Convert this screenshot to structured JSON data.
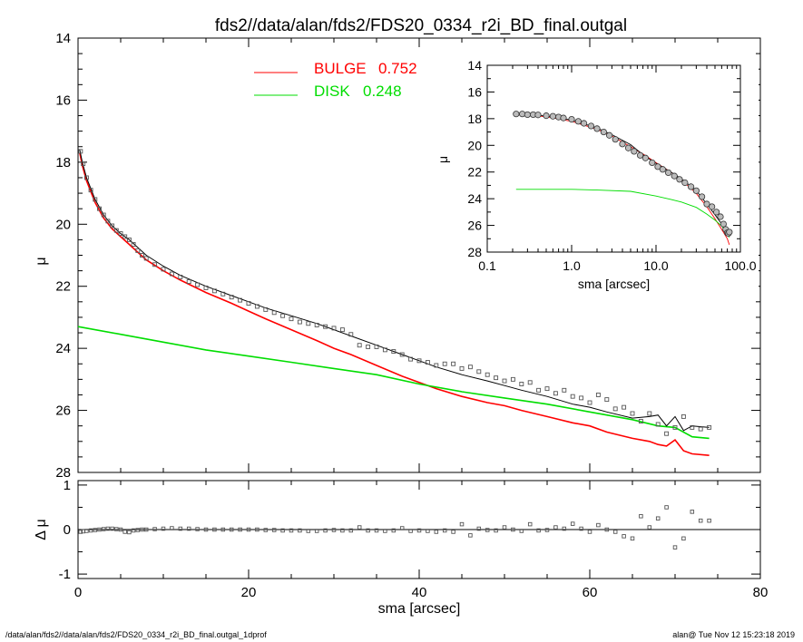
{
  "title": "fds2//data/alan/fds2/FDS20_0334_r2i_BD_final.outgal",
  "footer_left": "/data/alan/fds2//data/alan/fds2/FDS20_0334_r2i_BD_final.outgal_1dprof",
  "footer_right": "alan@  Tue Nov 12 15:23:18 2019",
  "legend": {
    "bulge": {
      "label": "BULGE",
      "value": "0.752",
      "color": "#ff0000"
    },
    "disk": {
      "label": "DISK",
      "value": "0.248",
      "color": "#00dd00"
    }
  },
  "chart_data": [
    {
      "id": "main",
      "type": "line",
      "xlabel": "sma [arcsec]",
      "ylabel": "μ",
      "xlim": [
        0,
        80
      ],
      "ylim": [
        28,
        14
      ],
      "x_ticks": [
        "0",
        "20",
        "40",
        "60",
        "80"
      ],
      "y_ticks": [
        "14",
        "16",
        "18",
        "20",
        "22",
        "24",
        "26",
        "28"
      ],
      "series": [
        {
          "name": "BULGE",
          "color": "#ff0000",
          "x": [
            0.2,
            0.5,
            1,
            2,
            3,
            4,
            5,
            6,
            7,
            8,
            10,
            12,
            15,
            18,
            20,
            22,
            25,
            28,
            30,
            32,
            35,
            38,
            40,
            42,
            45,
            48,
            50,
            52,
            55,
            58,
            60,
            62,
            65,
            67,
            68,
            69,
            70,
            71,
            72,
            74
          ],
          "y": [
            17.7,
            18.1,
            18.6,
            19.3,
            19.8,
            20.15,
            20.4,
            20.65,
            20.9,
            21.15,
            21.5,
            21.8,
            22.2,
            22.55,
            22.8,
            23.05,
            23.4,
            23.75,
            24.0,
            24.2,
            24.55,
            24.9,
            25.1,
            25.3,
            25.55,
            25.75,
            25.85,
            26.0,
            26.2,
            26.4,
            26.5,
            26.7,
            26.9,
            27.0,
            27.1,
            27.15,
            26.95,
            27.3,
            27.4,
            27.45
          ]
        },
        {
          "name": "DISK",
          "color": "#00dd00",
          "x": [
            0,
            5,
            10,
            15,
            20,
            25,
            30,
            35,
            40,
            45,
            50,
            55,
            60,
            65,
            68,
            70,
            72,
            74
          ],
          "y": [
            23.3,
            23.55,
            23.8,
            24.05,
            24.25,
            24.45,
            24.65,
            24.85,
            25.15,
            25.4,
            25.6,
            25.8,
            26.05,
            26.3,
            26.5,
            26.55,
            26.85,
            26.9
          ]
        },
        {
          "name": "total",
          "color": "#000000",
          "x": [
            0.2,
            0.5,
            1,
            2,
            3,
            4,
            5,
            6,
            7,
            8,
            10,
            12,
            15,
            18,
            20,
            22,
            25,
            28,
            30,
            32,
            35,
            38,
            40,
            42,
            45,
            48,
            50,
            52,
            55,
            58,
            60,
            62,
            65,
            67,
            68,
            69,
            70,
            71,
            72,
            74
          ],
          "y": [
            17.6,
            18.0,
            18.5,
            19.2,
            19.7,
            20.05,
            20.3,
            20.5,
            20.75,
            21.0,
            21.35,
            21.65,
            22.0,
            22.3,
            22.5,
            22.7,
            22.95,
            23.2,
            23.4,
            23.6,
            23.9,
            24.2,
            24.4,
            24.6,
            24.85,
            25.05,
            25.2,
            25.35,
            25.55,
            25.8,
            25.9,
            26.05,
            26.25,
            26.2,
            26.15,
            26.5,
            26.2,
            26.65,
            26.5,
            26.55
          ]
        },
        {
          "name": "data",
          "type": "scatter",
          "color": "#555555",
          "x": [
            0.3,
            0.6,
            1,
            1.5,
            2,
            2.5,
            3,
            3.5,
            4,
            4.5,
            5,
            5.5,
            6,
            6.5,
            7,
            7.5,
            8,
            9,
            10,
            11,
            12,
            13,
            14,
            15,
            16,
            17,
            18,
            19,
            20,
            21,
            22,
            23,
            24,
            25,
            26,
            27,
            28,
            29,
            30,
            31,
            32,
            33,
            34,
            35,
            36,
            37,
            38,
            39,
            40,
            41,
            42,
            43,
            44,
            45,
            46,
            47,
            48,
            49,
            50,
            51,
            52,
            53,
            54,
            55,
            56,
            57,
            58,
            59,
            60,
            61,
            62,
            63,
            64,
            65,
            66,
            67,
            68,
            69,
            70,
            71,
            72,
            73,
            74
          ],
          "y": [
            17.65,
            18.05,
            18.5,
            18.9,
            19.2,
            19.5,
            19.7,
            19.9,
            20.05,
            20.2,
            20.3,
            20.4,
            20.5,
            20.65,
            20.85,
            21.0,
            21.1,
            21.3,
            21.45,
            21.6,
            21.7,
            21.85,
            21.95,
            22.05,
            22.15,
            22.25,
            22.35,
            22.45,
            22.55,
            22.65,
            22.75,
            22.85,
            22.95,
            23.05,
            23.15,
            23.2,
            23.25,
            23.3,
            23.35,
            23.4,
            23.55,
            23.9,
            23.95,
            23.95,
            24.05,
            24.1,
            24.2,
            24.35,
            24.4,
            24.45,
            24.55,
            24.5,
            24.5,
            24.65,
            24.6,
            24.75,
            24.85,
            24.95,
            25.05,
            25.0,
            25.15,
            25.1,
            25.35,
            25.3,
            25.45,
            25.35,
            25.55,
            25.6,
            25.75,
            25.5,
            25.65,
            25.95,
            25.9,
            26.1,
            26.35,
            26.1,
            26.45,
            26.75,
            26.55,
            26.2,
            26.55,
            26.6,
            26.55
          ]
        }
      ]
    },
    {
      "id": "residual",
      "type": "scatter",
      "xlabel": "sma [arcsec]",
      "ylabel": "Δ μ",
      "xlim": [
        0,
        80
      ],
      "ylim": [
        -1.1,
        1.1
      ],
      "y_ticks": [
        "-1",
        "0",
        "1"
      ],
      "series": [
        {
          "name": "residual",
          "x": [
            0.3,
            0.6,
            1,
            1.5,
            2,
            2.5,
            3,
            3.5,
            4,
            4.5,
            5,
            5.5,
            6,
            6.5,
            7,
            7.5,
            8,
            9,
            10,
            11,
            12,
            13,
            14,
            15,
            16,
            17,
            18,
            19,
            20,
            21,
            22,
            23,
            24,
            25,
            26,
            27,
            28,
            29,
            30,
            31,
            32,
            33,
            34,
            35,
            36,
            37,
            38,
            39,
            40,
            41,
            42,
            43,
            44,
            45,
            46,
            47,
            48,
            49,
            50,
            51,
            52,
            53,
            54,
            55,
            56,
            57,
            58,
            59,
            60,
            61,
            62,
            63,
            64,
            65,
            66,
            67,
            68,
            69,
            70,
            71,
            72,
            73,
            74
          ],
          "y": [
            -0.05,
            -0.04,
            -0.03,
            -0.02,
            -0.01,
            0.0,
            0.01,
            0.02,
            0.02,
            0.01,
            0.0,
            -0.05,
            -0.06,
            -0.02,
            -0.01,
            0.0,
            0.0,
            0.01,
            0.02,
            0.03,
            0.02,
            0.02,
            0.01,
            0.0,
            0.0,
            0.0,
            0.0,
            0.0,
            0.0,
            0.0,
            -0.01,
            -0.01,
            -0.02,
            -0.02,
            -0.02,
            -0.03,
            -0.03,
            -0.02,
            -0.01,
            -0.02,
            -0.02,
            0.05,
            -0.02,
            -0.02,
            -0.03,
            -0.02,
            0.03,
            -0.03,
            -0.02,
            -0.03,
            -0.05,
            -0.02,
            -0.05,
            0.12,
            -0.13,
            0.02,
            -0.01,
            -0.02,
            0.05,
            0.0,
            -0.03,
            0.12,
            -0.02,
            -0.01,
            0.05,
            0.02,
            0.13,
            0.02,
            -0.05,
            0.1,
            0.0,
            -0.05,
            -0.15,
            -0.2,
            0.3,
            0.05,
            0.25,
            0.5,
            -0.4,
            -0.2,
            0.4,
            0.2,
            0.2
          ]
        }
      ]
    },
    {
      "id": "inset",
      "type": "line",
      "xlabel": "sma [arcsec]",
      "ylabel": "μ",
      "xscale": "log",
      "xlim": [
        0.1,
        100
      ],
      "ylim": [
        28,
        14
      ],
      "x_ticks": [
        "0.1",
        "1.0",
        "10.0",
        "100.0"
      ],
      "y_ticks": [
        "14",
        "16",
        "18",
        "20",
        "22",
        "24",
        "26",
        "28"
      ],
      "series": [
        {
          "name": "BULGE",
          "color": "#ff0000",
          "x": [
            0.22,
            0.3,
            0.5,
            1,
            2,
            3,
            5,
            7,
            10,
            15,
            20,
            30,
            40,
            50,
            60,
            70,
            74
          ],
          "y": [
            17.7,
            17.75,
            17.85,
            18.2,
            18.8,
            19.3,
            20.1,
            20.65,
            21.3,
            22.0,
            22.6,
            23.6,
            24.6,
            25.5,
            26.3,
            27.0,
            27.45
          ]
        },
        {
          "name": "DISK",
          "color": "#00dd00",
          "x": [
            0.22,
            0.5,
            1,
            2,
            5,
            10,
            15,
            20,
            30,
            40,
            50,
            60,
            74
          ],
          "y": [
            23.3,
            23.3,
            23.3,
            23.35,
            23.45,
            23.8,
            24.05,
            24.25,
            24.65,
            25.15,
            25.6,
            26.05,
            26.9
          ]
        },
        {
          "name": "total",
          "color": "#000000",
          "x": [
            0.22,
            0.3,
            0.5,
            1,
            2,
            3,
            5,
            7,
            10,
            15,
            20,
            30,
            40,
            50,
            60,
            70,
            74
          ],
          "y": [
            17.65,
            17.7,
            17.8,
            18.1,
            18.7,
            19.2,
            19.95,
            20.7,
            21.35,
            22.0,
            22.5,
            23.4,
            24.4,
            25.2,
            25.9,
            26.2,
            26.55
          ]
        },
        {
          "name": "data",
          "type": "scatter",
          "x": [
            0.22,
            0.26,
            0.3,
            0.35,
            0.4,
            0.5,
            0.6,
            0.7,
            0.8,
            1.0,
            1.2,
            1.4,
            1.7,
            2,
            2.4,
            2.8,
            3.3,
            4,
            4.7,
            5.5,
            6.5,
            7.5,
            9,
            10.5,
            12,
            14,
            16.5,
            19,
            22,
            26,
            30,
            35,
            40,
            46,
            52,
            58,
            63,
            67,
            70,
            72,
            74
          ],
          "y": [
            17.65,
            17.65,
            17.7,
            17.7,
            17.72,
            17.78,
            17.82,
            17.88,
            17.95,
            18.05,
            18.2,
            18.35,
            18.55,
            18.75,
            19.0,
            19.25,
            19.55,
            19.9,
            20.2,
            20.45,
            20.75,
            20.95,
            21.3,
            21.6,
            21.8,
            22.05,
            22.3,
            22.55,
            22.8,
            23.1,
            23.4,
            23.85,
            24.4,
            24.6,
            25.0,
            25.35,
            25.9,
            26.3,
            26.55,
            26.6,
            26.5
          ]
        }
      ]
    }
  ]
}
